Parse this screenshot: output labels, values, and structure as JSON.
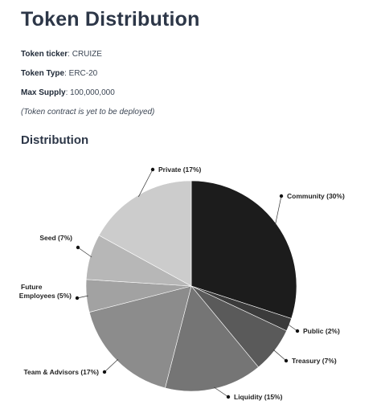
{
  "page": {
    "title": "Token Distribution",
    "properties": [
      {
        "label": "Token ticker",
        "value": "CRUIZE"
      },
      {
        "label": "Token Type",
        "value": "ERC-20"
      },
      {
        "label": "Max Supply",
        "value": "100,000,000"
      }
    ],
    "note": "(Token contract is yet to be deployed)",
    "section_title": "Distribution"
  },
  "chart_data": {
    "type": "pie",
    "slices": [
      {
        "label": "Community (30%)",
        "value": 30,
        "color": "#1c1c1c"
      },
      {
        "label": "Public (2%)",
        "value": 2,
        "color": "#3b3b3b"
      },
      {
        "label": "Treasury (7%)",
        "value": 7,
        "color": "#5a5a5a"
      },
      {
        "label": "Liquidity (15%)",
        "value": 15,
        "color": "#757575"
      },
      {
        "label": "Team & Advisors (17%)",
        "value": 17,
        "color": "#8c8c8c"
      },
      {
        "label": "Future Employees (5%)",
        "value": 5,
        "color": "#a2a2a2"
      },
      {
        "label": "Seed (7%)",
        "value": 7,
        "color": "#b7b7b7"
      },
      {
        "label": "Private (17%)",
        "value": 17,
        "color": "#cccccc"
      }
    ]
  }
}
